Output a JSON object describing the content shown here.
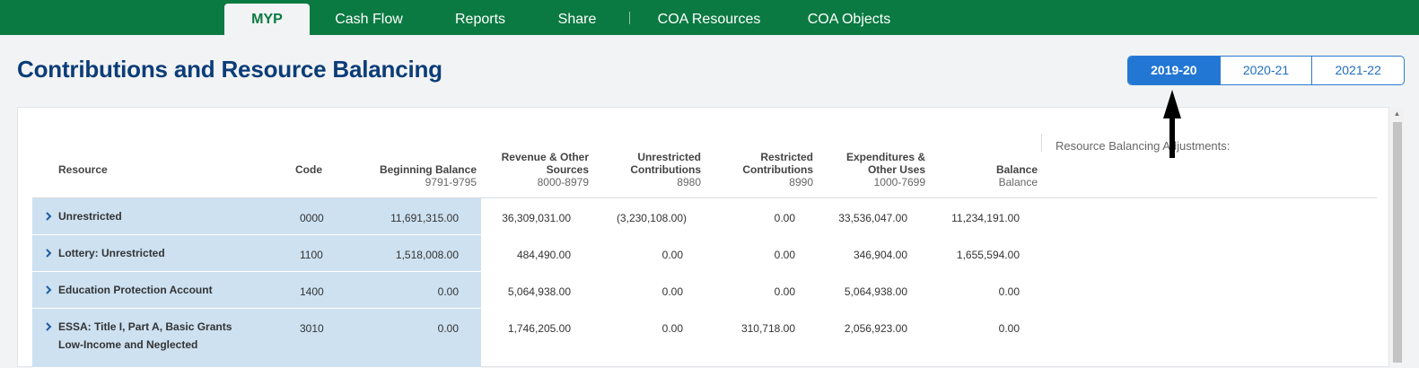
{
  "nav": {
    "tabs": [
      {
        "label": "MYP",
        "active": true
      },
      {
        "label": "Cash Flow",
        "active": false
      },
      {
        "label": "Reports",
        "active": false
      },
      {
        "label": "Share",
        "active": false
      },
      {
        "label": "COA Resources",
        "active": false
      },
      {
        "label": "COA Objects",
        "active": false
      }
    ]
  },
  "page": {
    "title": "Contributions and Resource Balancing"
  },
  "years": [
    {
      "label": "2019-20",
      "active": true
    },
    {
      "label": "2020-21",
      "active": false
    },
    {
      "label": "2021-22",
      "active": false
    }
  ],
  "table": {
    "headers": {
      "resource": "Resource",
      "code": "Code",
      "beginning_balance": {
        "label": "Beginning Balance",
        "sub": "9791-9795"
      },
      "revenue": {
        "label1": "Revenue & Other",
        "label2": "Sources",
        "sub": "8000-8979"
      },
      "unrestricted": {
        "label1": "Unrestricted",
        "label2": "Contributions",
        "sub": "8980"
      },
      "restricted": {
        "label1": "Restricted",
        "label2": "Contributions",
        "sub": "8990"
      },
      "expenditures": {
        "label1": "Expenditures &",
        "label2": "Other Uses",
        "sub": "1000-7699"
      },
      "balance": {
        "label": "Balance",
        "sub": "Balance"
      },
      "adjustments": "Resource Balancing Adjustments:"
    },
    "rows": [
      {
        "resource": "Unrestricted",
        "resource_line2": "",
        "code": "0000",
        "beginning_balance": "11,691,315.00",
        "revenue": "36,309,031.00",
        "unrestricted": "(3,230,108.00)",
        "restricted": "0.00",
        "expenditures": "33,536,047.00",
        "balance": "11,234,191.00"
      },
      {
        "resource": "Lottery: Unrestricted",
        "resource_line2": "",
        "code": "1100",
        "beginning_balance": "1,518,008.00",
        "revenue": "484,490.00",
        "unrestricted": "0.00",
        "restricted": "0.00",
        "expenditures": "346,904.00",
        "balance": "1,655,594.00"
      },
      {
        "resource": "Education Protection Account",
        "resource_line2": "",
        "code": "1400",
        "beginning_balance": "0.00",
        "revenue": "5,064,938.00",
        "unrestricted": "0.00",
        "restricted": "0.00",
        "expenditures": "5,064,938.00",
        "balance": "0.00"
      },
      {
        "resource": "ESSA: Title I, Part A, Basic Grants",
        "resource_line2": "Low-Income and Neglected",
        "code": "3010",
        "beginning_balance": "0.00",
        "revenue": "1,746,205.00",
        "unrestricted": "0.00",
        "restricted": "310,718.00",
        "expenditures": "2,056,923.00",
        "balance": "0.00"
      }
    ]
  },
  "colors": {
    "nav_green": "#0b7a42",
    "title_blue": "#0b3d78",
    "active_year_blue": "#2377d4",
    "row_highlight": "#cde1f1"
  }
}
